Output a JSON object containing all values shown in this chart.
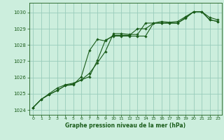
{
  "title": "Graphe pression niveau de la mer (hPa)",
  "background_color": "#cceedd",
  "grid_color": "#99ccbb",
  "line_color": "#1a5c1a",
  "marker_color": "#1a5c1a",
  "xlim": [
    -0.5,
    23.5
  ],
  "ylim": [
    1023.7,
    1030.6
  ],
  "yticks": [
    1024,
    1025,
    1026,
    1027,
    1028,
    1029,
    1030
  ],
  "xticks": [
    0,
    1,
    2,
    3,
    4,
    5,
    6,
    7,
    8,
    9,
    10,
    11,
    12,
    13,
    14,
    15,
    16,
    17,
    18,
    19,
    20,
    21,
    22,
    23
  ],
  "series1_x": [
    0,
    1,
    2,
    3,
    4,
    5,
    6,
    7,
    8,
    9,
    10,
    11,
    12,
    13,
    14,
    15,
    16,
    17,
    18,
    19,
    20,
    21,
    22,
    23
  ],
  "series1_y": [
    1024.15,
    1024.65,
    1025.0,
    1025.35,
    1025.55,
    1025.65,
    1025.85,
    1026.25,
    1026.9,
    1027.6,
    1028.7,
    1028.7,
    1028.65,
    1028.65,
    1029.35,
    1029.35,
    1029.45,
    1029.4,
    1029.45,
    1029.75,
    1030.05,
    1030.05,
    1029.7,
    1029.55
  ],
  "series2_x": [
    0,
    1,
    2,
    3,
    4,
    5,
    6,
    7,
    8,
    9,
    10,
    11,
    12,
    13,
    14,
    15,
    16,
    17,
    18,
    19,
    20,
    21,
    22,
    23
  ],
  "series2_y": [
    1024.15,
    1024.65,
    1024.95,
    1025.2,
    1025.5,
    1025.55,
    1026.05,
    1027.65,
    1028.35,
    1028.25,
    1028.6,
    1028.6,
    1028.6,
    1029.0,
    1029.0,
    1029.35,
    1029.35,
    1029.35,
    1029.35,
    1029.7,
    1030.05,
    1030.05,
    1029.55,
    1029.45
  ],
  "series3_x": [
    0,
    1,
    2,
    3,
    4,
    5,
    6,
    7,
    8,
    9,
    10,
    11,
    12,
    13,
    14,
    15,
    16,
    17,
    18,
    19,
    20,
    21,
    22,
    23
  ],
  "series3_y": [
    1024.15,
    1024.65,
    1024.95,
    1025.2,
    1025.5,
    1025.6,
    1025.85,
    1026.05,
    1027.05,
    1028.3,
    1028.55,
    1028.55,
    1028.55,
    1028.55,
    1028.55,
    1029.35,
    1029.35,
    1029.35,
    1029.35,
    1029.65,
    1030.05,
    1030.05,
    1029.55,
    1029.45
  ]
}
